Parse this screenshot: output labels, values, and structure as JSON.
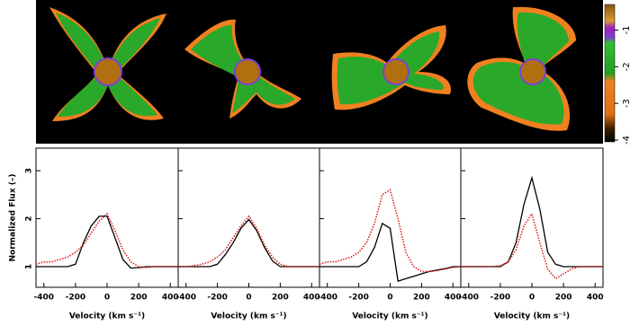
{
  "colorbar": {
    "lim": [
      -4.05,
      -0.3
    ],
    "ticks": [
      -1,
      -2,
      -3,
      -4
    ]
  },
  "chart_data": [
    {
      "type": "line",
      "ylabel": "Normalized Flux (–)",
      "xlabel": "Velocity  (km s⁻¹)",
      "xlim": [
        -450,
        450
      ],
      "xticks": [
        -400,
        -200,
        0,
        200,
        400
      ],
      "ylim": [
        0.57,
        3.47
      ],
      "yticks": [
        1,
        2,
        3
      ],
      "x": [
        -450,
        -400,
        -350,
        -300,
        -250,
        -200,
        -150,
        -100,
        -50,
        0,
        50,
        100,
        150,
        200,
        250,
        300,
        350,
        400,
        450
      ],
      "series": [
        {
          "color": "#000000",
          "values": [
            1,
            1,
            1,
            1,
            1,
            1.05,
            1.5,
            1.85,
            2.05,
            2.05,
            1.6,
            1.15,
            0.97,
            0.98,
            1,
            1,
            1,
            1,
            1
          ]
        },
        {
          "color": "#e02020",
          "values": [
            1.05,
            1.1,
            1.1,
            1.15,
            1.2,
            1.3,
            1.45,
            1.7,
            1.95,
            2.1,
            1.75,
            1.35,
            1.1,
            1,
            0.98,
            1,
            1,
            1,
            1
          ]
        }
      ]
    },
    {
      "type": "line",
      "xlabel": "Velocity  (km s⁻¹)",
      "xlim": [
        -450,
        450
      ],
      "xticks": [
        -400,
        -200,
        0,
        200,
        400
      ],
      "ylim": [
        0.57,
        3.47
      ],
      "yticks": [
        1,
        2,
        3
      ],
      "x": [
        -450,
        -400,
        -350,
        -300,
        -250,
        -200,
        -150,
        -100,
        -50,
        0,
        50,
        100,
        150,
        200,
        250,
        300,
        350,
        400,
        450
      ],
      "series": [
        {
          "color": "#000000",
          "values": [
            1,
            1,
            1,
            1,
            1,
            1.05,
            1.25,
            1.5,
            1.8,
            1.98,
            1.75,
            1.4,
            1.12,
            1,
            1,
            1,
            1,
            1,
            1
          ]
        },
        {
          "color": "#e02020",
          "values": [
            1,
            1,
            1.02,
            1.05,
            1.1,
            1.2,
            1.35,
            1.6,
            1.85,
            2.05,
            1.8,
            1.45,
            1.2,
            1.05,
            1,
            1,
            1,
            1,
            1
          ]
        }
      ]
    },
    {
      "type": "line",
      "xlabel": "Velocity  (km s⁻¹)",
      "xlim": [
        -450,
        450
      ],
      "xticks": [
        -400,
        -200,
        0,
        200,
        400
      ],
      "ylim": [
        0.57,
        3.47
      ],
      "yticks": [
        1,
        2,
        3
      ],
      "x": [
        -450,
        -400,
        -350,
        -300,
        -250,
        -200,
        -150,
        -100,
        -50,
        0,
        50,
        100,
        150,
        200,
        250,
        300,
        350,
        400,
        450
      ],
      "series": [
        {
          "color": "#000000",
          "values": [
            1,
            1,
            1,
            1,
            1,
            1,
            1.1,
            1.4,
            1.9,
            1.8,
            0.7,
            0.75,
            0.8,
            0.85,
            0.9,
            0.93,
            0.96,
            1,
            1
          ]
        },
        {
          "color": "#e02020",
          "values": [
            1.05,
            1.1,
            1.1,
            1.15,
            1.2,
            1.3,
            1.5,
            1.9,
            2.5,
            2.6,
            2,
            1.3,
            1,
            0.9,
            0.9,
            0.92,
            0.95,
            0.98,
            1
          ]
        }
      ]
    },
    {
      "type": "line",
      "xlabel": "Velocity  (km s⁻¹)",
      "xlim": [
        -450,
        450
      ],
      "xticks": [
        -400,
        -200,
        0,
        200,
        400
      ],
      "ylim": [
        0.57,
        3.47
      ],
      "yticks": [
        1,
        2,
        3
      ],
      "x": [
        -450,
        -400,
        -350,
        -300,
        -250,
        -200,
        -150,
        -100,
        -50,
        0,
        50,
        100,
        150,
        200,
        250,
        300,
        350,
        400,
        450
      ],
      "series": [
        {
          "color": "#000000",
          "values": [
            1,
            1,
            1,
            1,
            1,
            1,
            1.1,
            1.5,
            2.3,
            2.85,
            2.2,
            1.3,
            1.05,
            1,
            1,
            1,
            1,
            1,
            1
          ]
        },
        {
          "color": "#e02020",
          "values": [
            1,
            1,
            1,
            1,
            1,
            1.02,
            1.1,
            1.35,
            1.85,
            2.1,
            1.5,
            0.95,
            0.75,
            0.85,
            0.95,
            1,
            1,
            1,
            1
          ]
        }
      ]
    }
  ]
}
